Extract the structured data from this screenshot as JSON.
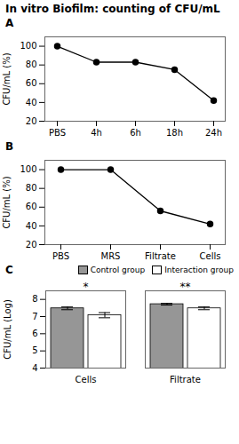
{
  "title": "In vitro Biofilm: counting of CFU/mL",
  "chart_data": [
    {
      "type": "line",
      "title": "A",
      "categories": [
        "PBS",
        "4h",
        "6h",
        "18h",
        "24h"
      ],
      "values": [
        100,
        83,
        83,
        75,
        42
      ],
      "ylabel": "CFU/mL (%)",
      "ylim": [
        20,
        110
      ],
      "yticks": [
        20,
        40,
        60,
        80,
        100
      ],
      "color": "#000000",
      "marker": "o"
    },
    {
      "type": "line",
      "title": "B",
      "categories": [
        "PBS",
        "MRS",
        "Filtrate",
        "Cells"
      ],
      "values": [
        100,
        100,
        56,
        42
      ],
      "ylabel": "CFU/mL (%)",
      "ylim": [
        20,
        110
      ],
      "yticks": [
        20,
        40,
        60,
        80,
        100
      ],
      "color": "#000000",
      "marker": "o"
    },
    {
      "type": "bar",
      "title": "C",
      "categories": [
        "Cells",
        "Filtrate"
      ],
      "series": [
        {
          "name": "Control group",
          "color": "#969696",
          "values": [
            7.48,
            7.72
          ],
          "errors": [
            0.08,
            0.05
          ]
        },
        {
          "name": "Interaction group",
          "color": "#ffffff",
          "values": [
            7.08,
            7.48
          ],
          "errors": [
            0.15,
            0.08
          ]
        }
      ],
      "ylabel": "CFU/mL (Log)",
      "ylim": [
        4,
        8.5
      ],
      "yticks": [
        4,
        5,
        6,
        7,
        8
      ],
      "annotations": [
        {
          "category": "Cells",
          "text": "*"
        },
        {
          "category": "Filtrate",
          "text": "**"
        }
      ],
      "legend": "right"
    }
  ]
}
